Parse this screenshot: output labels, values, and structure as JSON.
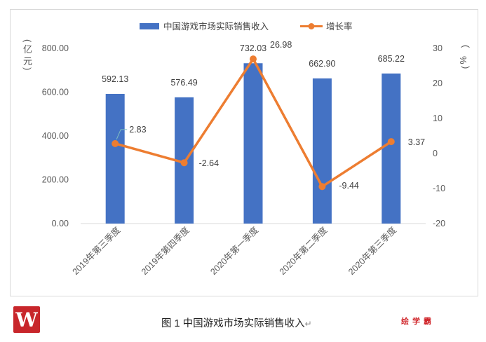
{
  "caption": "图 1  中国游戏市场实际销售收入",
  "caption_mark": "↵",
  "brand": "绘学霸",
  "logo_text": "W",
  "chart_data": {
    "type": "bar+line",
    "categories": [
      "2019年第三季度",
      "2019年第四季度",
      "2020年第一季度",
      "2020年第二季度",
      "2020年第三季度"
    ],
    "series": [
      {
        "name": "中国游戏市场实际销售收入",
        "type": "bar",
        "axis": "left",
        "values": [
          592.13,
          576.49,
          732.03,
          662.9,
          685.22
        ],
        "labels": [
          "592.13",
          "576.49",
          "732.03",
          "662.90",
          "685.22"
        ],
        "color": "#4472c4"
      },
      {
        "name": "增长率",
        "type": "line",
        "axis": "right",
        "values": [
          2.83,
          -2.64,
          26.98,
          -9.44,
          3.37
        ],
        "labels": [
          "2.83",
          "-2.64",
          "26.98",
          "-9.44",
          "3.37"
        ],
        "color": "#ed7d31"
      }
    ],
    "left_axis": {
      "unit": "亿元",
      "ylim": [
        0,
        800
      ],
      "ticks": [
        "0.00",
        "200.00",
        "400.00",
        "600.00",
        "800.00"
      ]
    },
    "right_axis": {
      "unit": "%",
      "ylim": [
        -20,
        30
      ],
      "ticks": [
        "-20",
        "-10",
        "0",
        "10",
        "20",
        "30"
      ]
    },
    "legend": "top",
    "grid": false
  }
}
